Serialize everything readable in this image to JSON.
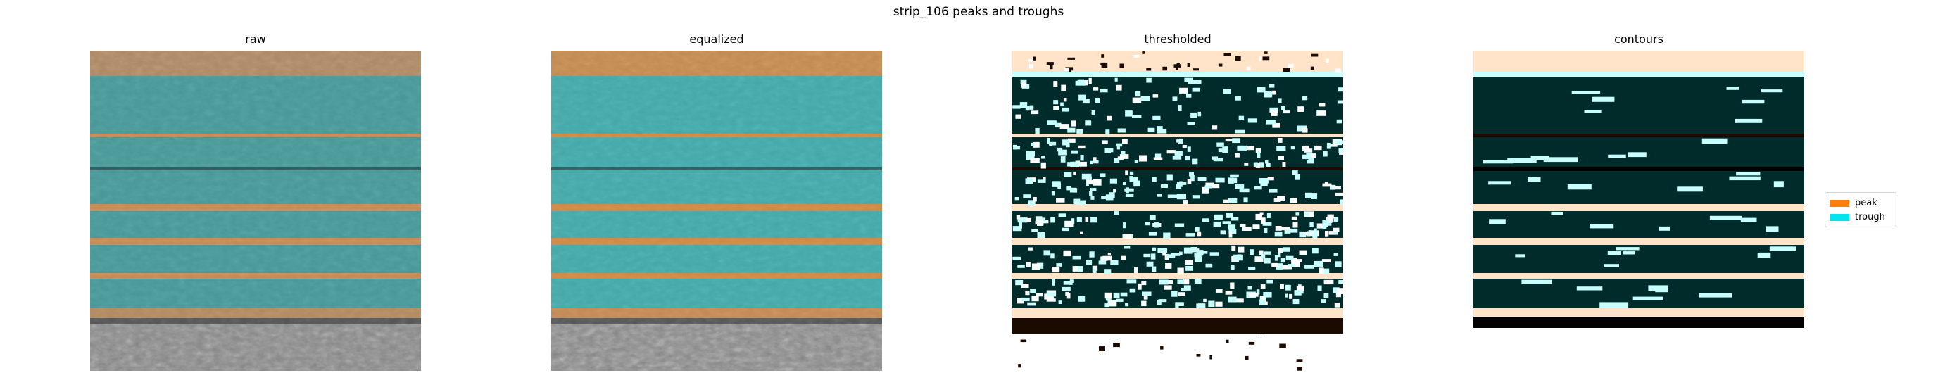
{
  "figure": {
    "title": "strip_106 peaks and troughs"
  },
  "panels": [
    {
      "title": "raw"
    },
    {
      "title": "equalized"
    },
    {
      "title": "thresholded"
    },
    {
      "title": "contours"
    }
  ],
  "legend": {
    "entries": [
      {
        "label": "peak",
        "color": "#ff7f0e"
      },
      {
        "label": "trough",
        "color": "#00e5ee"
      }
    ]
  },
  "colors": {
    "peak": "#ff7f0e",
    "trough": "#00e5ee",
    "threshold_dark": "#002b2b",
    "threshold_light": "#ffe4c9",
    "cyan_light": "#c8ffff"
  }
}
